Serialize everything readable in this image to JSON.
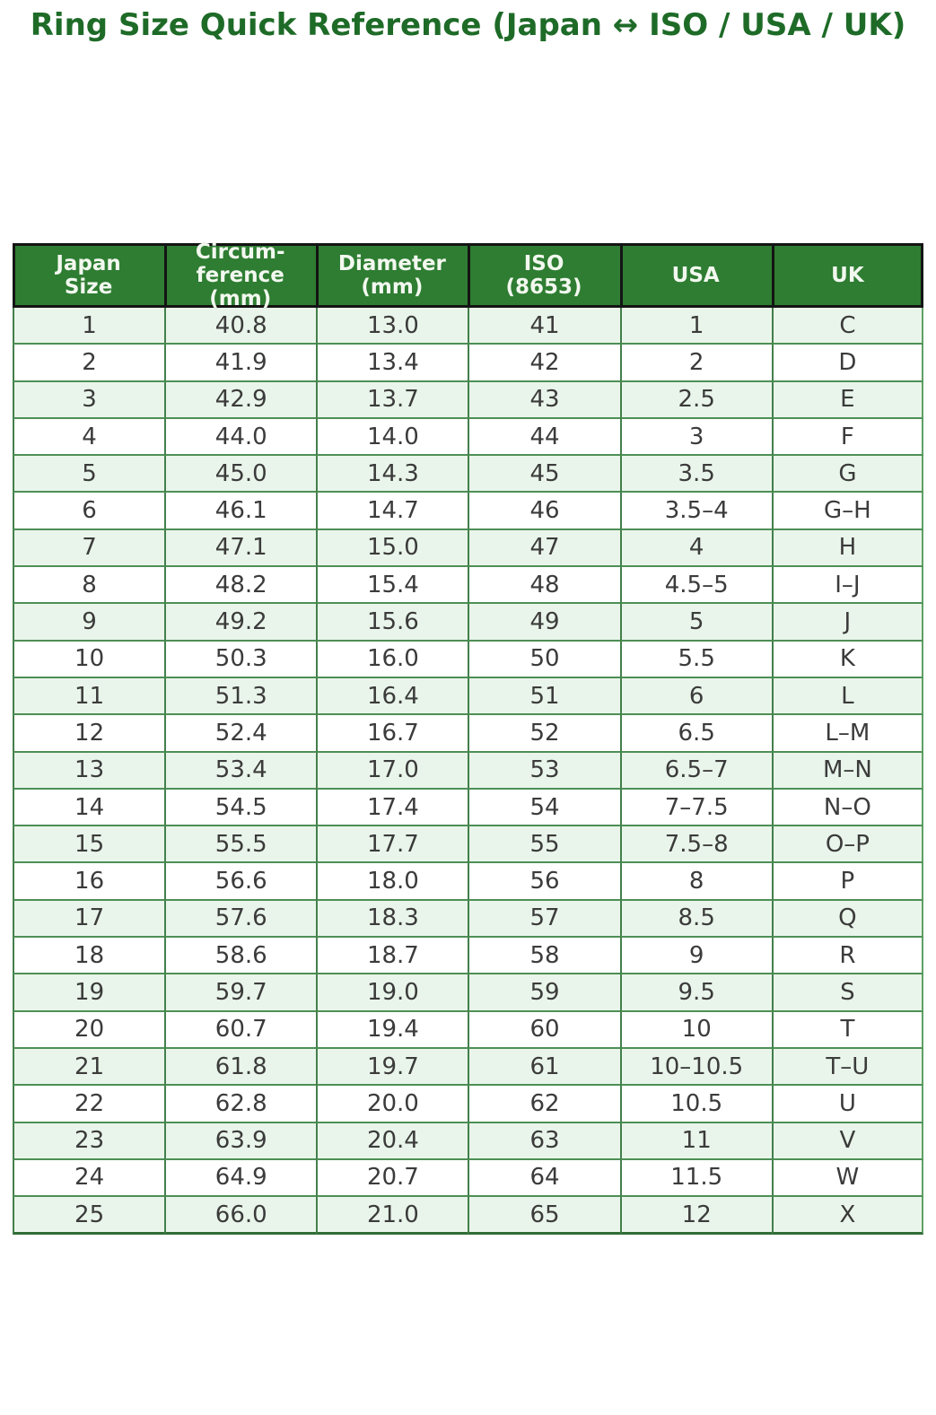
{
  "page": {
    "title": "Ring Size Quick Reference (Japan ↔ ISO / USA / UK)"
  },
  "colors": {
    "title_green": "#1e6b28",
    "header_bg_green": "#2e7d32",
    "header_text": "#f2f8ef",
    "header_frame": "#141414",
    "row_alt_green": "#e9f5ea",
    "row_white": "#ffffff",
    "grid_green": "#4d8f55",
    "bottom_border_green": "#2f6c36",
    "cell_text": "#3b3b3b"
  },
  "table": {
    "headers": [
      {
        "key": "japan",
        "label": "Japan\nSize"
      },
      {
        "key": "circumference",
        "label": "Circum-\nference\n(mm)"
      },
      {
        "key": "diameter",
        "label": "Diameter\n(mm)"
      },
      {
        "key": "iso",
        "label": "ISO\n(8653)"
      },
      {
        "key": "usa",
        "label": "USA"
      },
      {
        "key": "uk",
        "label": "UK"
      }
    ],
    "rows": [
      [
        "1",
        "40.8",
        "13.0",
        "41",
        "1",
        "C"
      ],
      [
        "2",
        "41.9",
        "13.4",
        "42",
        "2",
        "D"
      ],
      [
        "3",
        "42.9",
        "13.7",
        "43",
        "2.5",
        "E"
      ],
      [
        "4",
        "44.0",
        "14.0",
        "44",
        "3",
        "F"
      ],
      [
        "5",
        "45.0",
        "14.3",
        "45",
        "3.5",
        "G"
      ],
      [
        "6",
        "46.1",
        "14.7",
        "46",
        "3.5–4",
        "G–H"
      ],
      [
        "7",
        "47.1",
        "15.0",
        "47",
        "4",
        "H"
      ],
      [
        "8",
        "48.2",
        "15.4",
        "48",
        "4.5–5",
        "I–J"
      ],
      [
        "9",
        "49.2",
        "15.6",
        "49",
        "5",
        "J"
      ],
      [
        "10",
        "50.3",
        "16.0",
        "50",
        "5.5",
        "K"
      ],
      [
        "11",
        "51.3",
        "16.4",
        "51",
        "6",
        "L"
      ],
      [
        "12",
        "52.4",
        "16.7",
        "52",
        "6.5",
        "L–M"
      ],
      [
        "13",
        "53.4",
        "17.0",
        "53",
        "6.5–7",
        "M–N"
      ],
      [
        "14",
        "54.5",
        "17.4",
        "54",
        "7–7.5",
        "N–O"
      ],
      [
        "15",
        "55.5",
        "17.7",
        "55",
        "7.5–8",
        "O–P"
      ],
      [
        "16",
        "56.6",
        "18.0",
        "56",
        "8",
        "P"
      ],
      [
        "17",
        "57.6",
        "18.3",
        "57",
        "8.5",
        "Q"
      ],
      [
        "18",
        "58.6",
        "18.7",
        "58",
        "9",
        "R"
      ],
      [
        "19",
        "59.7",
        "19.0",
        "59",
        "9.5",
        "S"
      ],
      [
        "20",
        "60.7",
        "19.4",
        "60",
        "10",
        "T"
      ],
      [
        "21",
        "61.8",
        "19.7",
        "61",
        "10–10.5",
        "T–U"
      ],
      [
        "22",
        "62.8",
        "20.0",
        "62",
        "10.5",
        "U"
      ],
      [
        "23",
        "63.9",
        "20.4",
        "63",
        "11",
        "V"
      ],
      [
        "24",
        "64.9",
        "20.7",
        "64",
        "11.5",
        "W"
      ],
      [
        "25",
        "66.0",
        "21.0",
        "65",
        "12",
        "X"
      ]
    ]
  }
}
